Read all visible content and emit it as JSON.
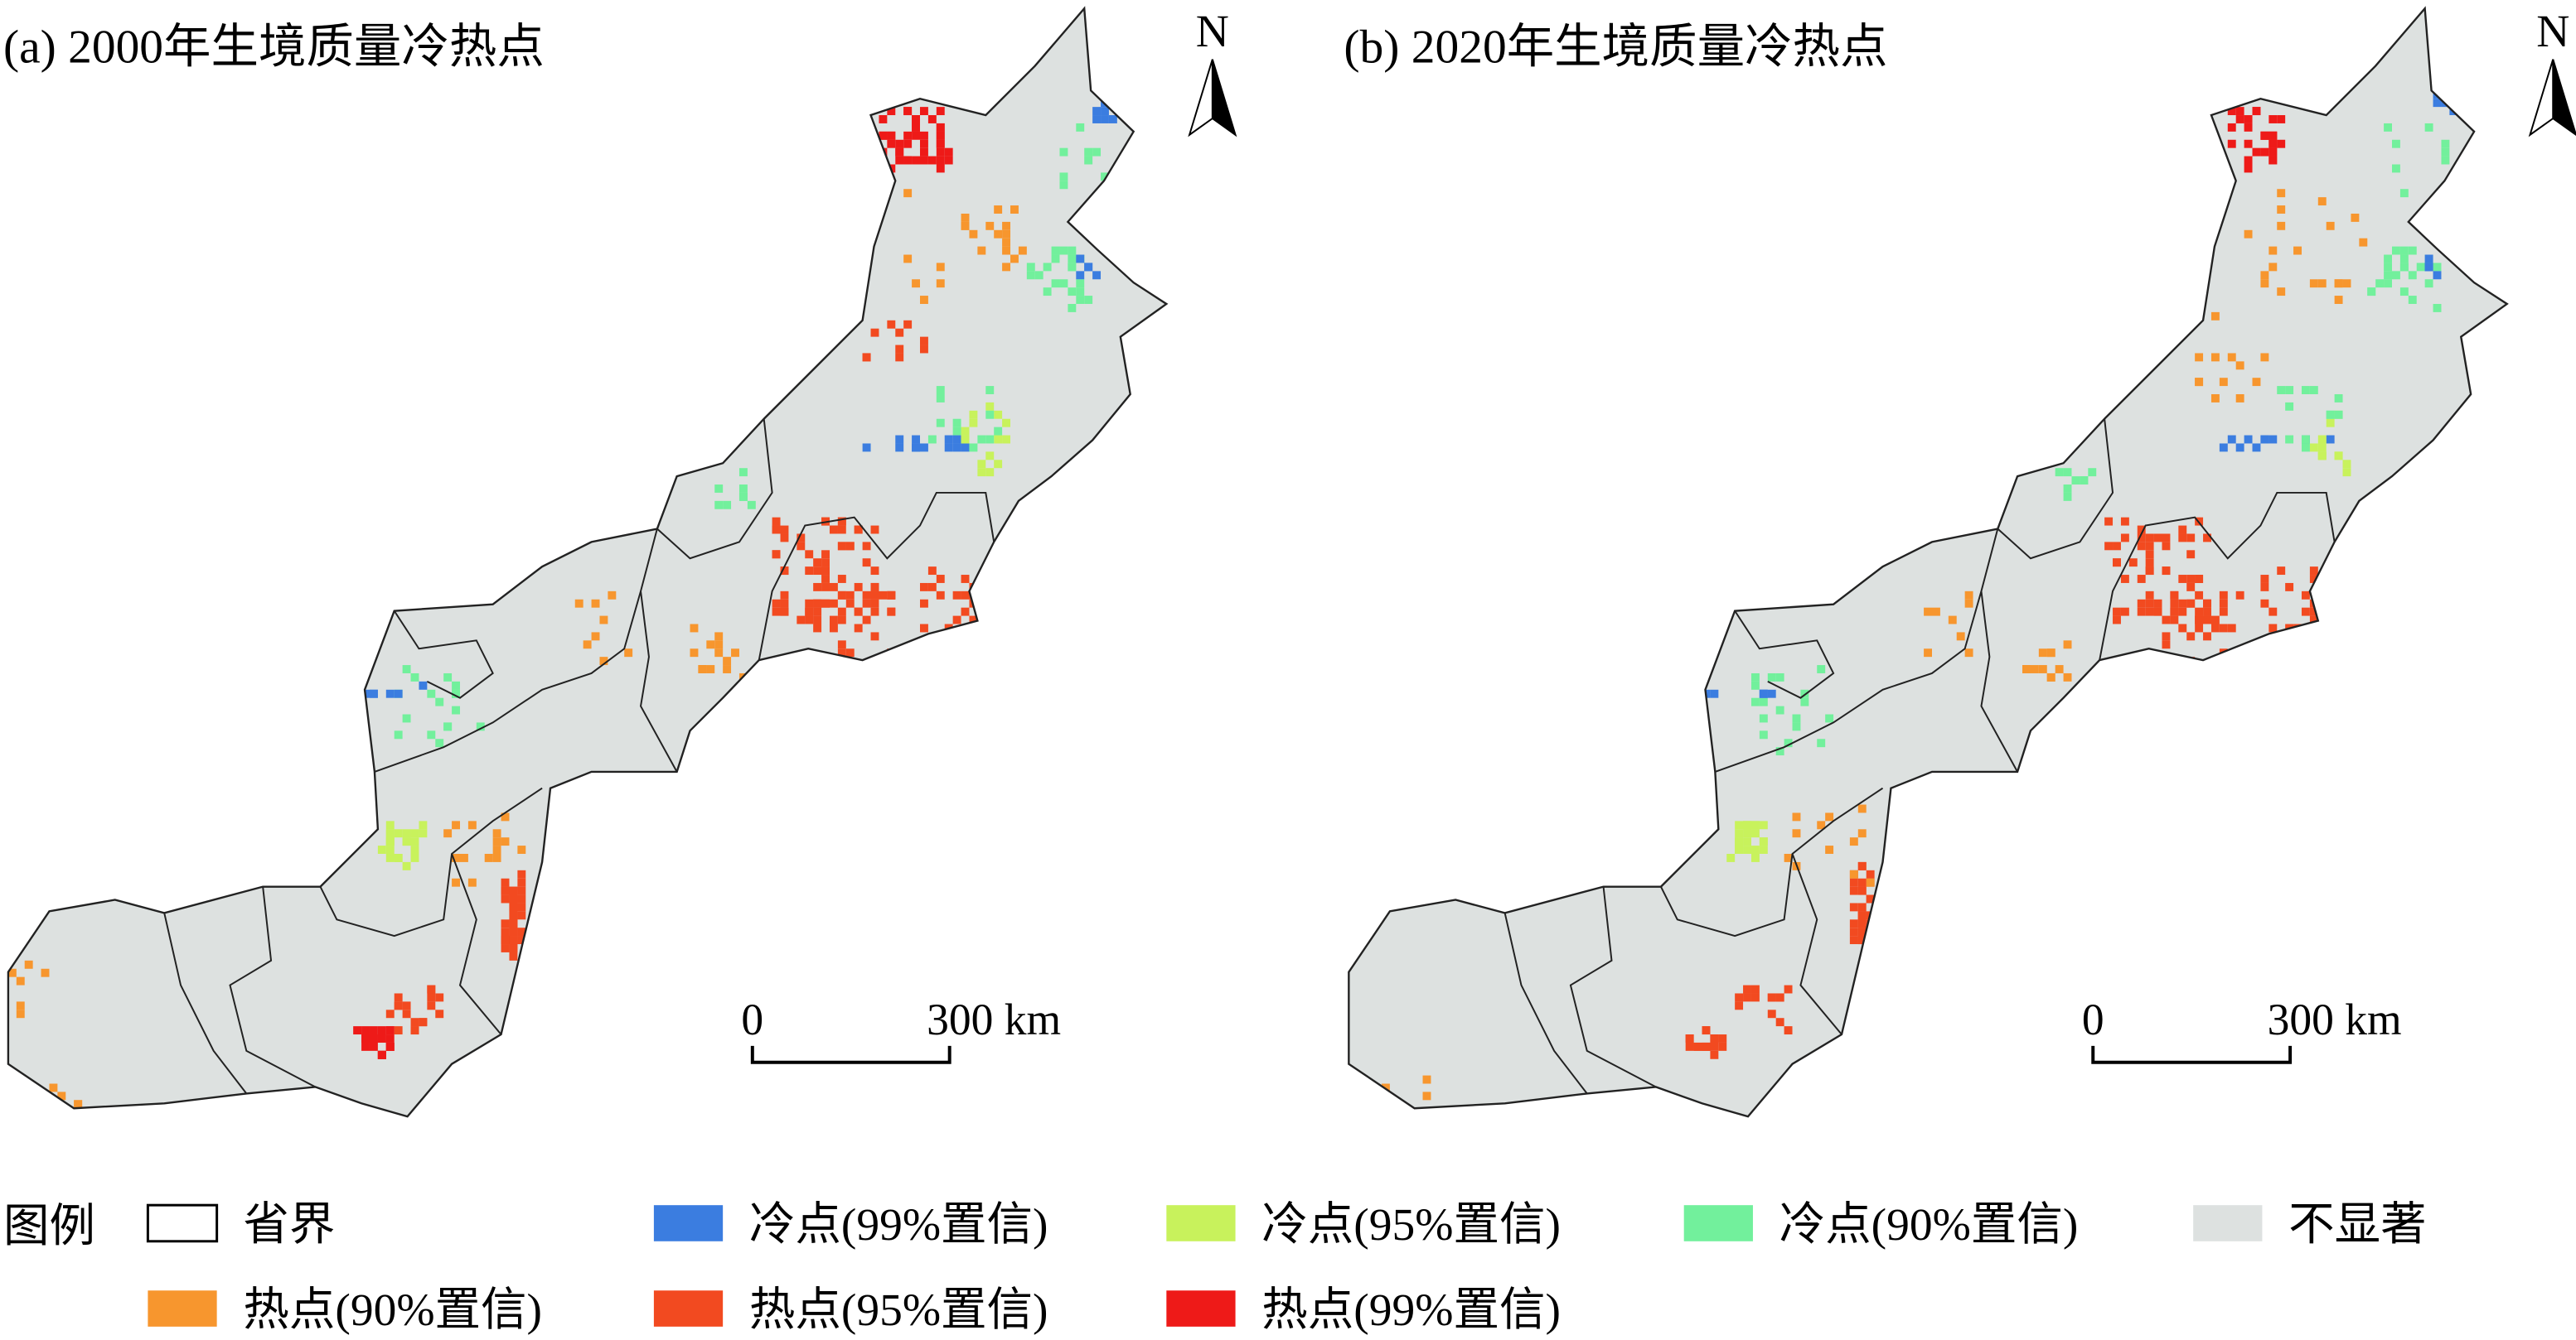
{
  "panels": [
    {
      "title": "(a) 2000年生境质量冷热点",
      "north": "N",
      "scale_start": "0",
      "scale_end": "300 km"
    },
    {
      "title": "(b) 2020年生境质量冷热点",
      "north": "N",
      "scale_start": "0",
      "scale_end": "300 km"
    }
  ],
  "legend": {
    "title": "图例",
    "items": [
      {
        "label": "省界",
        "color": "#ffffff"
      },
      {
        "label": "冷点(99%置信)",
        "color": "#3b7de0"
      },
      {
        "label": "冷点(95%置信)",
        "color": "#c8f25c"
      },
      {
        "label": "冷点(90%置信)",
        "color": "#72f09c"
      },
      {
        "label": "不显著",
        "color": "#dde1e0"
      },
      {
        "label": "热点(90%置信)",
        "color": "#f7962e"
      },
      {
        "label": "热点(95%置信)",
        "color": "#f24a20"
      },
      {
        "label": "热点(99%置信)",
        "color": "#ee1a18"
      }
    ]
  }
}
